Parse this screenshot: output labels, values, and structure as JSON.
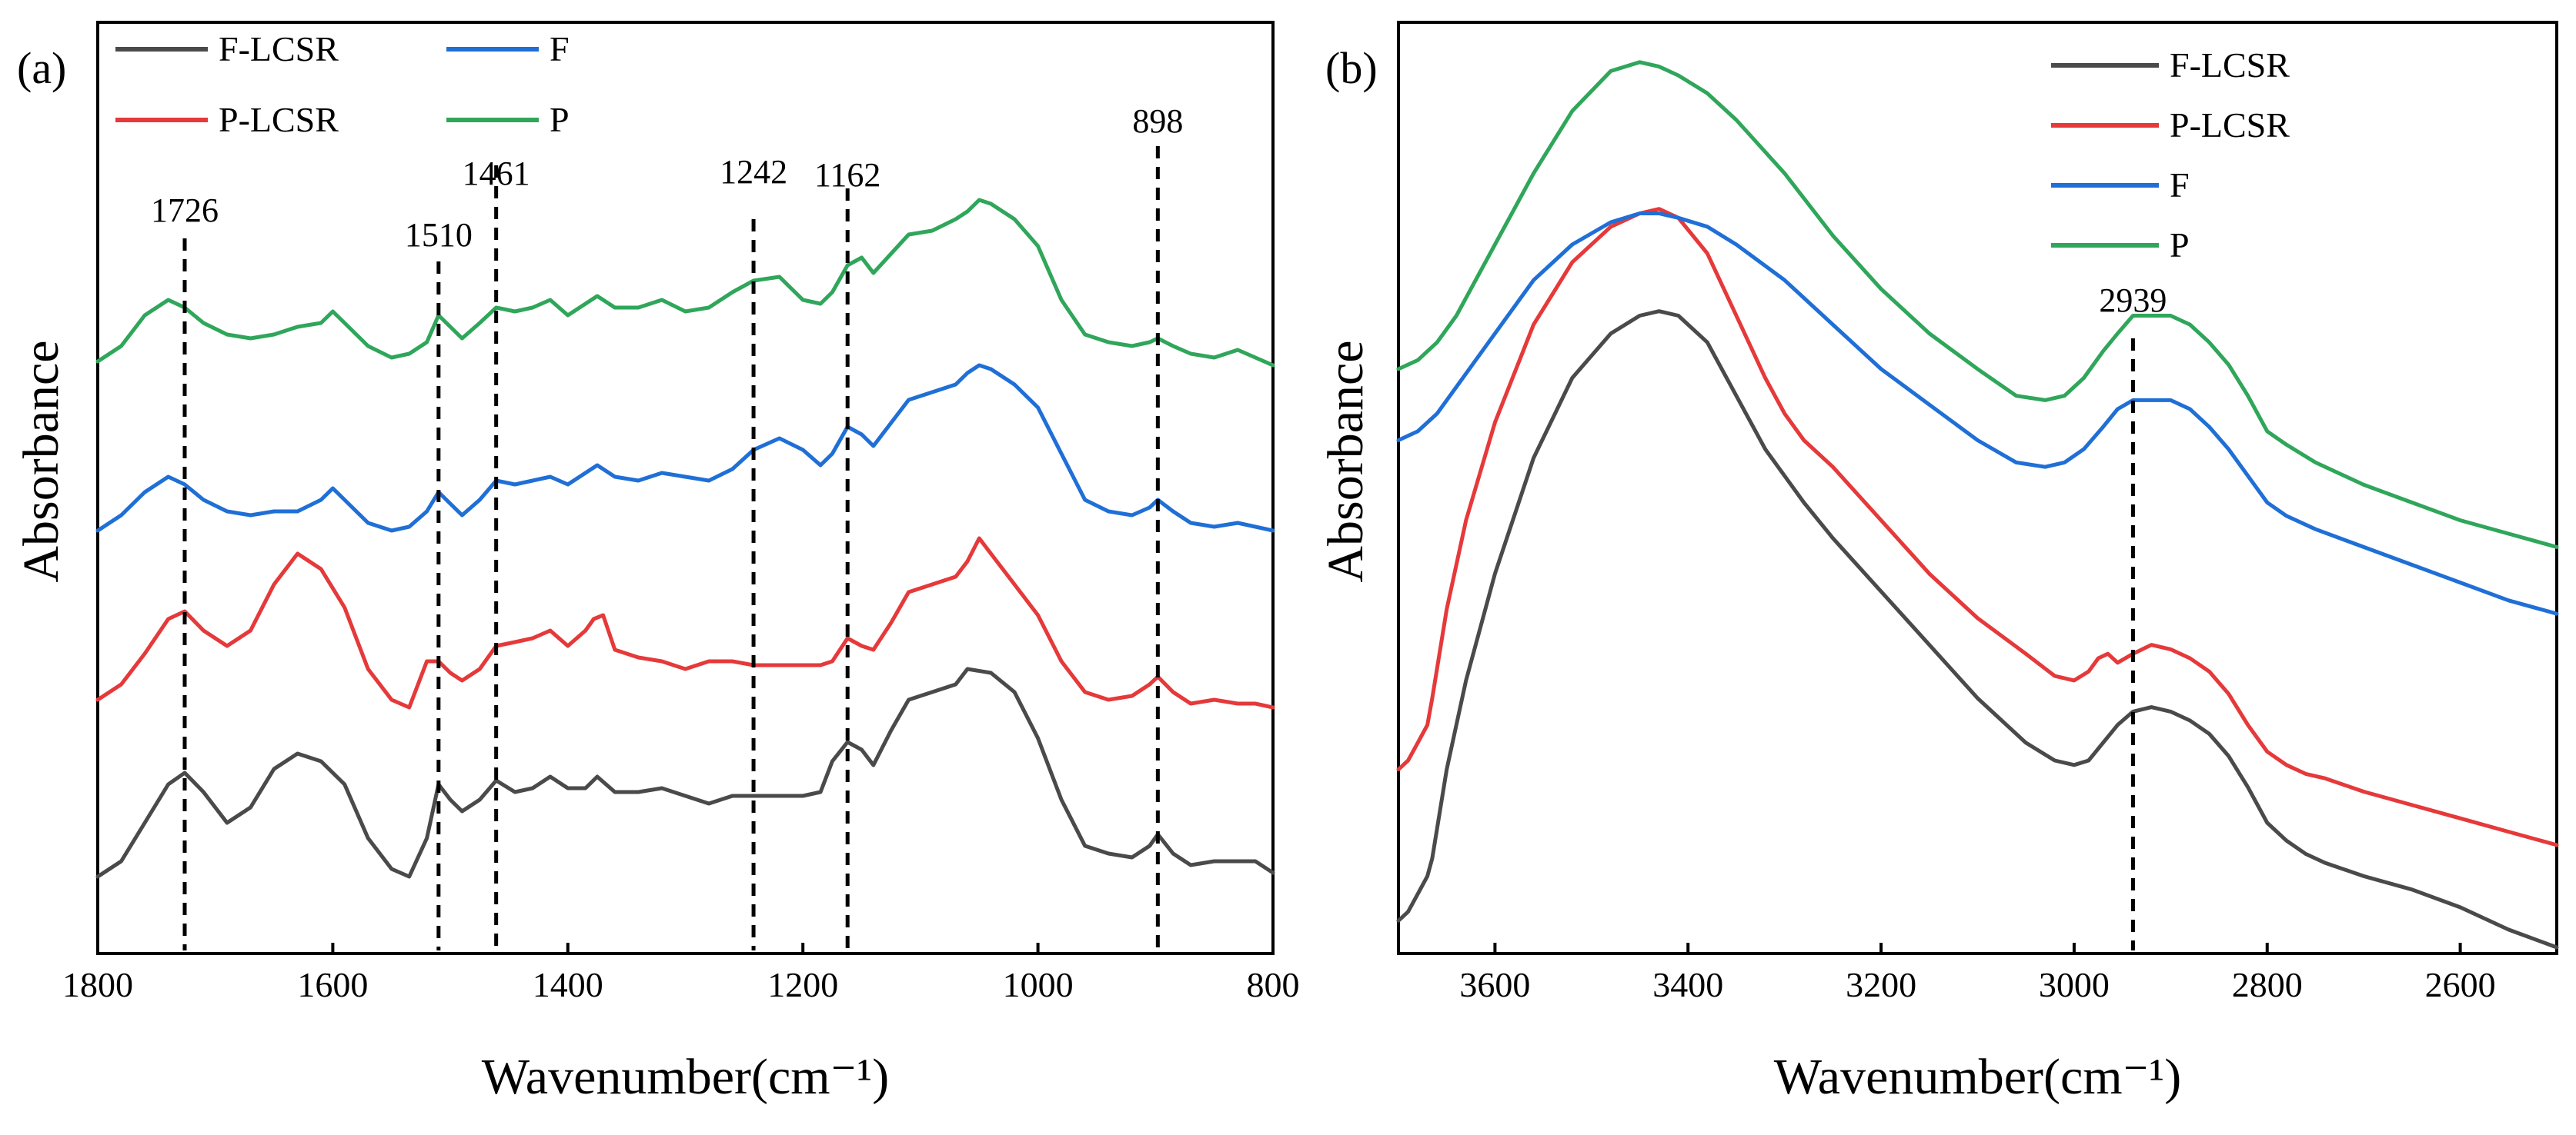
{
  "colors": {
    "F-LCSR": "#4a4a4a",
    "P-LCSR": "#e5393a",
    "F": "#1f6fd6",
    "P": "#2fa65a"
  },
  "chart_data": [
    {
      "type": "line",
      "panel_label": "(a)",
      "xlabel": "Wavenumber(cm⁻¹)",
      "ylabel": "Absorbance",
      "xlim": [
        1800,
        800
      ],
      "x_reversed": true,
      "xticks": [
        1800,
        1600,
        1400,
        1200,
        1000,
        800
      ],
      "y_ticks_shown": false,
      "grid": false,
      "legend": {
        "placement": "top-left",
        "columns": 2,
        "order": [
          "F-LCSR",
          "F",
          "P-LCSR",
          "P"
        ]
      },
      "reference_lines": [
        {
          "x": 1726,
          "label": "1726"
        },
        {
          "x": 1510,
          "label": "1510"
        },
        {
          "x": 1461,
          "label": "1461"
        },
        {
          "x": 1242,
          "label": "1242"
        },
        {
          "x": 1162,
          "label": "1162"
        },
        {
          "x": 898,
          "label": "898"
        }
      ],
      "ylim": [
        0,
        1
      ],
      "series": [
        {
          "name": "F-LCSR",
          "x": [
            1800,
            1780,
            1760,
            1740,
            1726,
            1710,
            1690,
            1670,
            1650,
            1630,
            1610,
            1590,
            1570,
            1550,
            1535,
            1520,
            1510,
            1500,
            1490,
            1475,
            1461,
            1445,
            1430,
            1415,
            1400,
            1385,
            1375,
            1360,
            1340,
            1320,
            1300,
            1280,
            1260,
            1242,
            1220,
            1200,
            1185,
            1175,
            1162,
            1150,
            1140,
            1125,
            1110,
            1090,
            1070,
            1060,
            1040,
            1020,
            1000,
            980,
            960,
            940,
            920,
            905,
            898,
            885,
            870,
            850,
            830,
            815,
            800
          ],
          "y": [
            0.05,
            0.07,
            0.12,
            0.17,
            0.185,
            0.16,
            0.12,
            0.14,
            0.19,
            0.21,
            0.2,
            0.17,
            0.1,
            0.06,
            0.05,
            0.1,
            0.17,
            0.15,
            0.135,
            0.15,
            0.175,
            0.16,
            0.165,
            0.18,
            0.165,
            0.165,
            0.18,
            0.16,
            0.16,
            0.165,
            0.155,
            0.145,
            0.155,
            0.155,
            0.155,
            0.155,
            0.16,
            0.2,
            0.225,
            0.215,
            0.195,
            0.24,
            0.28,
            0.29,
            0.3,
            0.32,
            0.315,
            0.29,
            0.23,
            0.15,
            0.09,
            0.08,
            0.075,
            0.09,
            0.105,
            0.08,
            0.065,
            0.07,
            0.07,
            0.07,
            0.055
          ]
        },
        {
          "name": "P-LCSR",
          "x": [
            1800,
            1780,
            1760,
            1740,
            1726,
            1710,
            1690,
            1670,
            1650,
            1630,
            1610,
            1590,
            1570,
            1550,
            1535,
            1520,
            1510,
            1500,
            1490,
            1475,
            1461,
            1445,
            1430,
            1415,
            1400,
            1385,
            1378,
            1370,
            1360,
            1340,
            1320,
            1300,
            1280,
            1260,
            1242,
            1220,
            1200,
            1185,
            1175,
            1162,
            1150,
            1140,
            1125,
            1110,
            1090,
            1070,
            1060,
            1050,
            1040,
            1020,
            1000,
            980,
            960,
            940,
            920,
            905,
            898,
            885,
            870,
            850,
            830,
            815,
            800
          ],
          "y": [
            0.28,
            0.3,
            0.34,
            0.385,
            0.395,
            0.37,
            0.35,
            0.37,
            0.43,
            0.47,
            0.45,
            0.4,
            0.32,
            0.28,
            0.27,
            0.33,
            0.33,
            0.315,
            0.305,
            0.32,
            0.35,
            0.355,
            0.36,
            0.37,
            0.35,
            0.37,
            0.385,
            0.39,
            0.345,
            0.335,
            0.33,
            0.32,
            0.33,
            0.33,
            0.325,
            0.325,
            0.325,
            0.325,
            0.33,
            0.36,
            0.35,
            0.345,
            0.38,
            0.42,
            0.43,
            0.44,
            0.46,
            0.49,
            0.47,
            0.43,
            0.39,
            0.33,
            0.29,
            0.28,
            0.285,
            0.3,
            0.31,
            0.29,
            0.275,
            0.28,
            0.275,
            0.275,
            0.27
          ]
        },
        {
          "name": "F",
          "x": [
            1800,
            1780,
            1760,
            1740,
            1726,
            1710,
            1690,
            1670,
            1650,
            1630,
            1610,
            1600,
            1590,
            1570,
            1550,
            1535,
            1520,
            1510,
            1500,
            1490,
            1475,
            1461,
            1445,
            1430,
            1415,
            1400,
            1385,
            1375,
            1360,
            1340,
            1320,
            1300,
            1280,
            1260,
            1242,
            1220,
            1200,
            1185,
            1175,
            1162,
            1150,
            1140,
            1125,
            1110,
            1090,
            1070,
            1060,
            1050,
            1040,
            1020,
            1000,
            980,
            960,
            940,
            920,
            905,
            898,
            885,
            870,
            850,
            830,
            815,
            800
          ],
          "y": [
            0.5,
            0.52,
            0.55,
            0.57,
            0.56,
            0.54,
            0.525,
            0.52,
            0.525,
            0.525,
            0.54,
            0.555,
            0.54,
            0.51,
            0.5,
            0.505,
            0.525,
            0.55,
            0.535,
            0.52,
            0.54,
            0.565,
            0.56,
            0.565,
            0.57,
            0.56,
            0.575,
            0.585,
            0.57,
            0.565,
            0.575,
            0.57,
            0.565,
            0.58,
            0.605,
            0.62,
            0.605,
            0.585,
            0.6,
            0.635,
            0.625,
            0.61,
            0.64,
            0.67,
            0.68,
            0.69,
            0.705,
            0.715,
            0.71,
            0.69,
            0.66,
            0.6,
            0.54,
            0.525,
            0.52,
            0.53,
            0.54,
            0.525,
            0.51,
            0.505,
            0.51,
            0.505,
            0.5
          ]
        },
        {
          "name": "P",
          "x": [
            1800,
            1780,
            1760,
            1740,
            1726,
            1710,
            1690,
            1670,
            1650,
            1630,
            1610,
            1600,
            1590,
            1570,
            1550,
            1535,
            1520,
            1510,
            1500,
            1490,
            1475,
            1461,
            1445,
            1430,
            1415,
            1400,
            1385,
            1375,
            1360,
            1340,
            1320,
            1300,
            1280,
            1260,
            1242,
            1220,
            1200,
            1185,
            1175,
            1162,
            1150,
            1140,
            1125,
            1110,
            1090,
            1070,
            1060,
            1050,
            1040,
            1020,
            1000,
            980,
            960,
            940,
            920,
            905,
            898,
            885,
            870,
            850,
            830,
            815,
            800
          ],
          "y": [
            0.72,
            0.74,
            0.78,
            0.8,
            0.79,
            0.77,
            0.755,
            0.75,
            0.755,
            0.765,
            0.77,
            0.785,
            0.77,
            0.74,
            0.725,
            0.73,
            0.745,
            0.78,
            0.765,
            0.75,
            0.77,
            0.79,
            0.785,
            0.79,
            0.8,
            0.78,
            0.795,
            0.805,
            0.79,
            0.79,
            0.8,
            0.785,
            0.79,
            0.81,
            0.825,
            0.83,
            0.8,
            0.795,
            0.81,
            0.845,
            0.855,
            0.835,
            0.86,
            0.885,
            0.89,
            0.905,
            0.915,
            0.93,
            0.925,
            0.905,
            0.87,
            0.8,
            0.755,
            0.745,
            0.74,
            0.745,
            0.75,
            0.74,
            0.73,
            0.725,
            0.735,
            0.725,
            0.715
          ]
        }
      ]
    },
    {
      "type": "line",
      "panel_label": "(b)",
      "xlabel": "Wavenumber(cm⁻¹)",
      "ylabel": "Absorbance",
      "xlim": [
        3700,
        2500
      ],
      "x_reversed": true,
      "xticks": [
        3600,
        3400,
        3200,
        3000,
        2800,
        2600
      ],
      "y_ticks_shown": false,
      "grid": false,
      "legend": {
        "placement": "top-right",
        "columns": 1,
        "order": [
          "F-LCSR",
          "P-LCSR",
          "F",
          "P"
        ]
      },
      "reference_lines": [
        {
          "x": 2939,
          "label": "2939"
        }
      ],
      "ylim": [
        0,
        1
      ],
      "series": [
        {
          "name": "F-LCSR",
          "x": [
            3700,
            3690,
            3680,
            3670,
            3665,
            3650,
            3630,
            3600,
            3560,
            3520,
            3480,
            3450,
            3430,
            3410,
            3380,
            3350,
            3320,
            3300,
            3280,
            3250,
            3200,
            3150,
            3100,
            3050,
            3020,
            3000,
            2985,
            2970,
            2955,
            2939,
            2920,
            2900,
            2880,
            2860,
            2840,
            2820,
            2800,
            2780,
            2760,
            2740,
            2700,
            2650,
            2600,
            2550,
            2500
          ],
          "y": [
            0.03,
            0.04,
            0.06,
            0.08,
            0.1,
            0.2,
            0.3,
            0.42,
            0.55,
            0.64,
            0.69,
            0.71,
            0.715,
            0.71,
            0.68,
            0.62,
            0.56,
            0.53,
            0.5,
            0.46,
            0.4,
            0.34,
            0.28,
            0.23,
            0.21,
            0.205,
            0.21,
            0.23,
            0.25,
            0.265,
            0.27,
            0.265,
            0.255,
            0.24,
            0.215,
            0.18,
            0.14,
            0.12,
            0.105,
            0.095,
            0.08,
            0.065,
            0.045,
            0.02,
            0.0
          ]
        },
        {
          "name": "P-LCSR",
          "x": [
            3700,
            3690,
            3680,
            3670,
            3665,
            3650,
            3630,
            3600,
            3560,
            3520,
            3480,
            3450,
            3430,
            3410,
            3380,
            3350,
            3320,
            3300,
            3280,
            3250,
            3200,
            3150,
            3100,
            3050,
            3020,
            3000,
            2985,
            2975,
            2965,
            2955,
            2939,
            2920,
            2900,
            2880,
            2860,
            2840,
            2820,
            2800,
            2780,
            2760,
            2740,
            2700,
            2650,
            2600,
            2550,
            2500
          ],
          "y": [
            0.2,
            0.21,
            0.23,
            0.25,
            0.28,
            0.38,
            0.48,
            0.59,
            0.7,
            0.77,
            0.81,
            0.825,
            0.83,
            0.82,
            0.78,
            0.71,
            0.64,
            0.6,
            0.57,
            0.54,
            0.48,
            0.42,
            0.37,
            0.33,
            0.305,
            0.3,
            0.31,
            0.325,
            0.33,
            0.32,
            0.33,
            0.34,
            0.335,
            0.325,
            0.31,
            0.285,
            0.25,
            0.22,
            0.205,
            0.195,
            0.19,
            0.175,
            0.16,
            0.145,
            0.13,
            0.115
          ]
        },
        {
          "name": "F",
          "x": [
            3700,
            3680,
            3660,
            3640,
            3600,
            3560,
            3520,
            3480,
            3450,
            3430,
            3410,
            3380,
            3350,
            3300,
            3250,
            3200,
            3150,
            3100,
            3060,
            3030,
            3010,
            2990,
            2970,
            2955,
            2939,
            2920,
            2900,
            2880,
            2860,
            2840,
            2820,
            2800,
            2780,
            2750,
            2700,
            2650,
            2600,
            2550,
            2500
          ],
          "y": [
            0.57,
            0.58,
            0.6,
            0.63,
            0.69,
            0.75,
            0.79,
            0.815,
            0.825,
            0.825,
            0.82,
            0.81,
            0.79,
            0.75,
            0.7,
            0.65,
            0.61,
            0.57,
            0.545,
            0.54,
            0.545,
            0.56,
            0.585,
            0.605,
            0.615,
            0.615,
            0.615,
            0.605,
            0.585,
            0.56,
            0.53,
            0.5,
            0.485,
            0.47,
            0.45,
            0.43,
            0.41,
            0.39,
            0.375
          ]
        },
        {
          "name": "P",
          "x": [
            3700,
            3680,
            3660,
            3640,
            3600,
            3560,
            3520,
            3480,
            3450,
            3430,
            3410,
            3380,
            3350,
            3300,
            3250,
            3200,
            3150,
            3100,
            3060,
            3030,
            3010,
            2990,
            2970,
            2955,
            2939,
            2920,
            2900,
            2880,
            2860,
            2840,
            2820,
            2800,
            2780,
            2750,
            2700,
            2650,
            2600,
            2550,
            2500
          ],
          "y": [
            0.65,
            0.66,
            0.68,
            0.71,
            0.79,
            0.87,
            0.94,
            0.985,
            0.995,
            0.99,
            0.98,
            0.96,
            0.93,
            0.87,
            0.8,
            0.74,
            0.69,
            0.65,
            0.62,
            0.615,
            0.62,
            0.64,
            0.67,
            0.69,
            0.71,
            0.71,
            0.71,
            0.7,
            0.68,
            0.655,
            0.62,
            0.58,
            0.565,
            0.545,
            0.52,
            0.5,
            0.48,
            0.465,
            0.45
          ]
        }
      ]
    }
  ]
}
